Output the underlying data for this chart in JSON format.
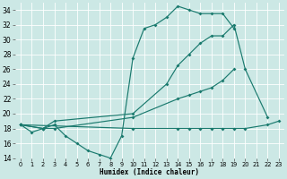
{
  "xlabel": "Humidex (Indice chaleur)",
  "bg_color": "#cce8e5",
  "grid_color": "#ffffff",
  "line_color": "#1a7a6e",
  "xlim": [
    -0.5,
    23.5
  ],
  "ylim": [
    14,
    35
  ],
  "yticks": [
    14,
    16,
    18,
    20,
    22,
    24,
    26,
    28,
    30,
    32,
    34
  ],
  "xticks": [
    0,
    1,
    2,
    3,
    4,
    5,
    6,
    7,
    8,
    9,
    10,
    11,
    12,
    13,
    14,
    15,
    16,
    17,
    18,
    19,
    20,
    21,
    22,
    23
  ],
  "lines": [
    {
      "x": [
        0,
        1,
        2,
        3,
        4,
        5,
        6,
        7,
        8,
        9,
        10,
        11,
        12,
        13,
        14,
        15,
        16,
        17,
        18,
        19,
        20
      ],
      "y": [
        18.5,
        17.5,
        18.0,
        18.5,
        17.0,
        16.0,
        15.0,
        14.5,
        14.0,
        17.0,
        27.5,
        31.5,
        32.0,
        33.0,
        34.5,
        34.0,
        33.5,
        33.5,
        33.5,
        31.5,
        null
      ]
    },
    {
      "x": [
        0,
        2,
        3,
        10,
        13,
        14,
        15,
        16,
        17,
        18,
        19,
        20,
        22,
        23
      ],
      "y": [
        18.5,
        18.0,
        19.0,
        20.0,
        24.0,
        26.5,
        28.0,
        29.5,
        30.5,
        30.5,
        32.0,
        26.0,
        19.5,
        null
      ]
    },
    {
      "x": [
        0,
        2,
        3,
        10,
        14,
        15,
        16,
        17,
        18,
        19,
        20,
        22,
        23
      ],
      "y": [
        18.5,
        18.0,
        18.0,
        19.5,
        22.0,
        22.5,
        23.0,
        23.5,
        24.5,
        26.0,
        null,
        null,
        null
      ]
    },
    {
      "x": [
        0,
        10,
        14,
        15,
        16,
        17,
        18,
        19,
        20,
        22,
        23
      ],
      "y": [
        18.5,
        18.0,
        18.0,
        18.0,
        18.0,
        18.0,
        18.0,
        18.0,
        18.0,
        18.5,
        19.0
      ]
    }
  ]
}
